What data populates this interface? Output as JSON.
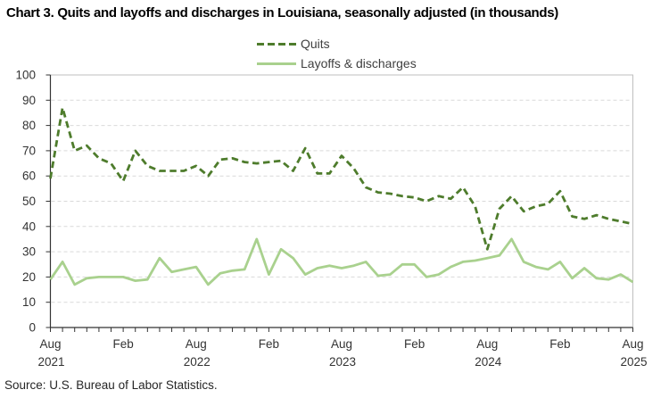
{
  "title": "Chart 3. Quits and layoffs and discharges in Louisiana, seasonally adjusted (in thousands)",
  "source_note": "Source: U.S. Bureau of Labor Statistics.",
  "colors": {
    "quits_line": "#4e7c2c",
    "layoffs_line": "#a9d18e",
    "gridline": "#d9d9d9",
    "plot_border": "#bfbfbf",
    "axis": "#333333",
    "tick_label": "#333333"
  },
  "legend": {
    "items": [
      {
        "label": "Quits",
        "line_style": "dashed",
        "color": "#4e7c2c"
      },
      {
        "label": "Layoffs & discharges",
        "line_style": "solid",
        "color": "#a9d18e"
      }
    ]
  },
  "chart_data": {
    "type": "line",
    "title": "Chart 3. Quits and layoffs and discharges in Louisiana, seasonally adjusted (in thousands)",
    "x_frequency": "monthly",
    "x_range": "Aug 2021 - Aug 2025",
    "grid": true,
    "legend_position": "top-center",
    "ylim": [
      0,
      100
    ],
    "y_tick_step": 10,
    "y_tick_labels": [
      "0",
      "10",
      "20",
      "30",
      "40",
      "50",
      "60",
      "70",
      "80",
      "90",
      "100"
    ],
    "x_tick_labels": [
      {
        "index": 0,
        "month": "Aug",
        "year": "2021"
      },
      {
        "index": 6,
        "month": "Feb",
        "year": ""
      },
      {
        "index": 12,
        "month": "Aug",
        "year": "2022"
      },
      {
        "index": 18,
        "month": "Feb",
        "year": ""
      },
      {
        "index": 24,
        "month": "Aug",
        "year": "2023"
      },
      {
        "index": 30,
        "month": "Feb",
        "year": ""
      },
      {
        "index": 36,
        "month": "Aug",
        "year": "2024"
      },
      {
        "index": 42,
        "month": "Feb",
        "year": ""
      },
      {
        "index": 48,
        "month": "Aug",
        "year": "2025"
      }
    ],
    "x": [
      "Aug 2021",
      "Sep 2021",
      "Oct 2021",
      "Nov 2021",
      "Dec 2021",
      "Jan 2022",
      "Feb 2022",
      "Mar 2022",
      "Apr 2022",
      "May 2022",
      "Jun 2022",
      "Jul 2022",
      "Aug 2022",
      "Sep 2022",
      "Oct 2022",
      "Nov 2022",
      "Dec 2022",
      "Jan 2023",
      "Feb 2023",
      "Mar 2023",
      "Apr 2023",
      "May 2023",
      "Jun 2023",
      "Jul 2023",
      "Aug 2023",
      "Sep 2023",
      "Oct 2023",
      "Nov 2023",
      "Dec 2023",
      "Jan 2024",
      "Feb 2024",
      "Mar 2024",
      "Apr 2024",
      "May 2024",
      "Jun 2024",
      "Jul 2024",
      "Aug 2024",
      "Sep 2024",
      "Oct 2024",
      "Nov 2024",
      "Dec 2024",
      "Jan 2025",
      "Feb 2025",
      "Mar 2025",
      "Apr 2025",
      "May 2025",
      "Jun 2025",
      "Jul 2025",
      "Aug 2025"
    ],
    "series": [
      {
        "name": "Quits",
        "style": "dashed",
        "color": "#4e7c2c",
        "values": [
          59,
          87,
          70,
          72,
          67,
          65,
          58,
          70,
          64,
          62,
          62,
          62,
          64,
          60,
          66.5,
          67,
          65.5,
          65,
          65.5,
          66,
          62,
          71,
          61,
          61,
          68,
          63,
          55.5,
          53.5,
          53,
          52,
          51.5,
          50,
          52,
          51,
          55.5,
          48,
          31,
          47,
          52,
          46,
          48,
          49,
          54,
          44,
          43,
          44.5,
          43,
          42,
          41
        ]
      },
      {
        "name": "Layoffs & discharges",
        "style": "solid",
        "color": "#a9d18e",
        "values": [
          19,
          26,
          17,
          19.5,
          20,
          20,
          20,
          18.5,
          19,
          27.5,
          22,
          23,
          24,
          17,
          21.5,
          22.5,
          23,
          35,
          21,
          31,
          27.5,
          21,
          23.5,
          24.5,
          23.5,
          24.5,
          26,
          20.5,
          21,
          25,
          25,
          20,
          21,
          24,
          26,
          26.5,
          27.5,
          28.5,
          35,
          26,
          24,
          23,
          26,
          19.5,
          23.5,
          19.5,
          19,
          21,
          18
        ]
      }
    ]
  }
}
